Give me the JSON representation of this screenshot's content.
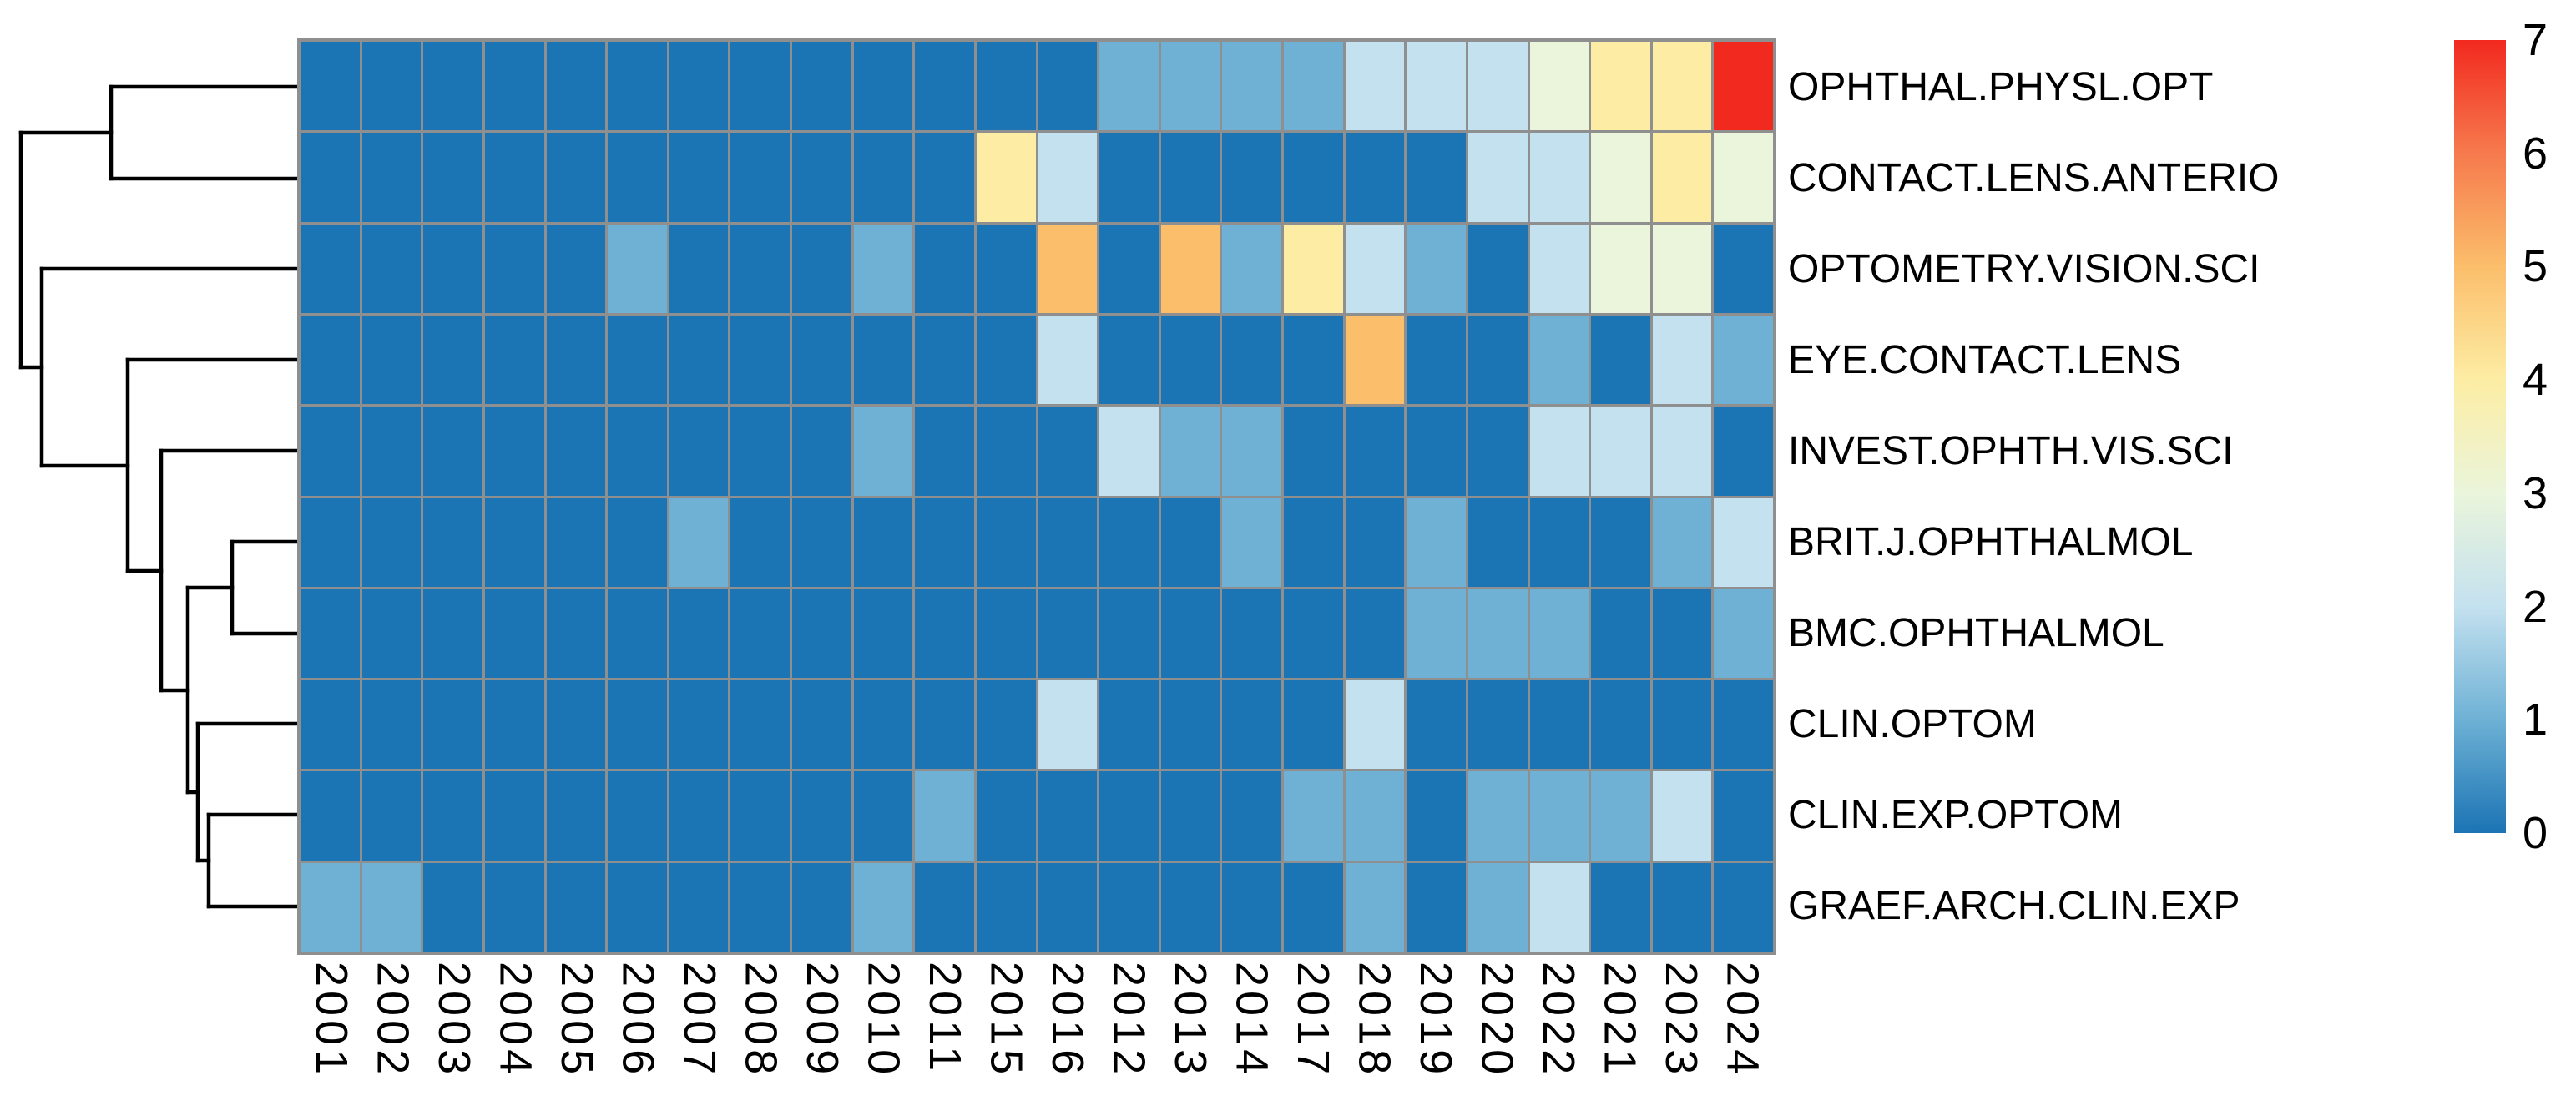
{
  "chart_data": {
    "type": "heatmap",
    "title": "",
    "xlabel": "",
    "ylabel": "",
    "columns": [
      "2001",
      "2002",
      "2003",
      "2004",
      "2005",
      "2006",
      "2007",
      "2008",
      "2009",
      "2010",
      "2011",
      "2015",
      "2016",
      "2012",
      "2013",
      "2014",
      "2017",
      "2018",
      "2019",
      "2020",
      "2022",
      "2021",
      "2023",
      "2024"
    ],
    "rows": [
      "OPHTHAL.PHYSL.OPT",
      "CONTACT.LENS.ANTERIO",
      "OPTOMETRY.VISION.SCI",
      "EYE.CONTACT.LENS",
      "INVEST.OPHTH.VIS.SCI",
      "BRIT.J.OPHTHALMOL",
      "BMC.OPHTHALMOL",
      "CLIN.OPTOM",
      "CLIN.EXP.OPTOM",
      "GRAEF.ARCH.CLIN.EXP"
    ],
    "matrix": [
      [
        0,
        0,
        0,
        0,
        0,
        0,
        0,
        0,
        0,
        0,
        0,
        0,
        0,
        1,
        1,
        1,
        1,
        2,
        2,
        2,
        3,
        4,
        4,
        7
      ],
      [
        0,
        0,
        0,
        0,
        0,
        0,
        0,
        0,
        0,
        0,
        0,
        4,
        2,
        0,
        0,
        0,
        0,
        0,
        0,
        2,
        2,
        3,
        4,
        3
      ],
      [
        0,
        0,
        0,
        0,
        0,
        1,
        0,
        0,
        0,
        1,
        0,
        0,
        5,
        0,
        5,
        1,
        4,
        2,
        1,
        0,
        2,
        3,
        3,
        0
      ],
      [
        0,
        0,
        0,
        0,
        0,
        0,
        0,
        0,
        0,
        0,
        0,
        0,
        2,
        0,
        0,
        0,
        0,
        5,
        0,
        0,
        1,
        0,
        2,
        1
      ],
      [
        0,
        0,
        0,
        0,
        0,
        0,
        0,
        0,
        0,
        1,
        0,
        0,
        0,
        2,
        1,
        1,
        0,
        0,
        0,
        0,
        2,
        2,
        2,
        0
      ],
      [
        0,
        0,
        0,
        0,
        0,
        0,
        1,
        0,
        0,
        0,
        0,
        0,
        0,
        0,
        0,
        1,
        0,
        0,
        1,
        0,
        0,
        0,
        1,
        2
      ],
      [
        0,
        0,
        0,
        0,
        0,
        0,
        0,
        0,
        0,
        0,
        0,
        0,
        0,
        0,
        0,
        0,
        0,
        0,
        1,
        1,
        1,
        0,
        0,
        1
      ],
      [
        0,
        0,
        0,
        0,
        0,
        0,
        0,
        0,
        0,
        0,
        0,
        0,
        2,
        0,
        0,
        0,
        0,
        2,
        0,
        0,
        0,
        0,
        0,
        0
      ],
      [
        0,
        0,
        0,
        0,
        0,
        0,
        0,
        0,
        0,
        0,
        1,
        0,
        0,
        0,
        0,
        0,
        1,
        1,
        0,
        1,
        1,
        1,
        2,
        0
      ],
      [
        1,
        1,
        0,
        0,
        0,
        0,
        0,
        0,
        0,
        1,
        0,
        0,
        0,
        0,
        0,
        0,
        0,
        1,
        0,
        1,
        2,
        0,
        0,
        0
      ]
    ],
    "value_range": [
      0,
      7
    ],
    "palette": {
      "0": "#1B74B4",
      "1": "#6EB1D5",
      "2": "#C4E1EF",
      "3": "#EAF5DB",
      "4": "#FDEDA4",
      "5": "#FBBE6B",
      "6": "#F67A4D",
      "7": "#F2291F"
    },
    "legend": {
      "ticks": [
        "7",
        "6",
        "5",
        "4",
        "3",
        "2",
        "1",
        "0"
      ],
      "position": "right"
    },
    "grid": {
      "line_color": "#8F8F8F",
      "on": true
    },
    "label_color": "#000000",
    "dendrogram": {
      "color": "#000000",
      "line_width": 4.5,
      "segments": [
        [
          25,
          159,
          25,
          440
        ],
        [
          133,
          104,
          133,
          214
        ],
        [
          50,
          322,
          50,
          558
        ],
        [
          153,
          431,
          153,
          684
        ],
        [
          193,
          540,
          193,
          827
        ],
        [
          225,
          704,
          225,
          949
        ],
        [
          278,
          649,
          278,
          759
        ],
        [
          237,
          867,
          237,
          1031
        ],
        [
          250,
          976,
          250,
          1086
        ],
        [
          25,
          159,
          133,
          159
        ],
        [
          25,
          440,
          50,
          440
        ],
        [
          50,
          558,
          153,
          558
        ],
        [
          153,
          684,
          193,
          684
        ],
        [
          193,
          827,
          225,
          827
        ],
        [
          225,
          704,
          278,
          704
        ],
        [
          225,
          949,
          237,
          949
        ],
        [
          237,
          1031,
          250,
          1031
        ],
        [
          133,
          104,
          357,
          104
        ],
        [
          133,
          214,
          357,
          214
        ],
        [
          50,
          322,
          357,
          322
        ],
        [
          153,
          431,
          357,
          431
        ],
        [
          193,
          540,
          357,
          540
        ],
        [
          278,
          649,
          357,
          649
        ],
        [
          278,
          759,
          357,
          759
        ],
        [
          237,
          867,
          357,
          867
        ],
        [
          250,
          976,
          357,
          976
        ],
        [
          250,
          1086,
          357,
          1086
        ]
      ]
    }
  }
}
